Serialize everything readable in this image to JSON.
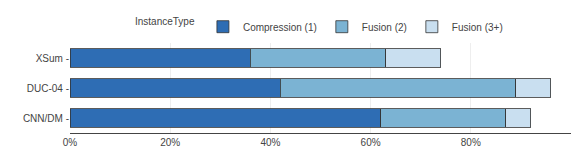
{
  "chart_data": {
    "type": "bar",
    "orientation": "horizontal",
    "stacked": true,
    "categories": [
      "CNN/DM -",
      "DUC-04 -",
      "XSum -"
    ],
    "series": [
      {
        "name": "Compression (1)",
        "color": "#2E6DB4",
        "values": [
          62,
          42,
          36
        ]
      },
      {
        "name": "Fusion (2)",
        "color": "#7BB3D3",
        "values": [
          25,
          47,
          27
        ]
      },
      {
        "name": "Fusion (3+)",
        "color": "#C9DFF0",
        "values": [
          5,
          7,
          11
        ]
      }
    ],
    "legend_title": "InstanceType",
    "legend": "top",
    "xlim": [
      0,
      100
    ],
    "xticks": [
      {
        "value": 0,
        "label": "0%"
      },
      {
        "value": 20,
        "label": "20%"
      },
      {
        "value": 40,
        "label": "40%"
      },
      {
        "value": 60,
        "label": "60%"
      },
      {
        "value": 80,
        "label": "80%"
      }
    ],
    "grid": true
  }
}
